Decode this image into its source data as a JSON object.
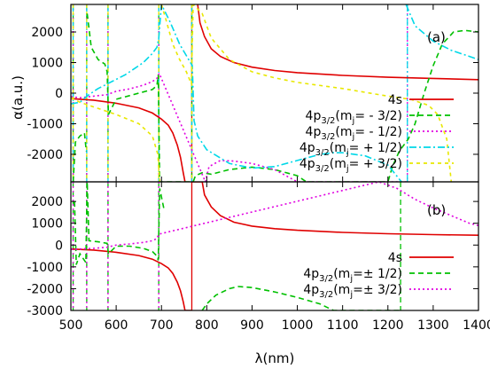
{
  "chart_data": [
    {
      "panel": "(a)",
      "type": "line",
      "xlim": [
        500,
        1400
      ],
      "ylim": [
        -2900,
        2900
      ],
      "yticks": [
        -2000,
        -1000,
        0,
        1000,
        2000
      ],
      "ylabel": "α(a.u.)",
      "legend_position": "lower-right",
      "resonances_nm": {
        "4s": [
          767
        ],
        "4p32_m-3/2": [
          505,
          535,
          582,
          694,
          767
        ],
        "4p32_m-1/2": [
          505,
          535,
          582,
          694,
          1243
        ],
        "4p32_m+1/2": [
          505,
          535,
          582,
          694,
          767,
          1243
        ],
        "4p32_m+3/2": [
          505,
          535,
          582,
          694,
          767
        ]
      },
      "series": [
        {
          "key": "4s",
          "label_main": "4s",
          "label_sub": "",
          "label_tail": "",
          "color": "#e00000",
          "dash": "",
          "points": [
            [
              500,
              -180
            ],
            [
              550,
              -230
            ],
            [
              600,
              -330
            ],
            [
              650,
              -480
            ],
            [
              680,
              -650
            ],
            [
              700,
              -850
            ],
            [
              715,
              -1050
            ],
            [
              725,
              -1300
            ],
            [
              735,
              -1700
            ],
            [
              742,
              -2100
            ],
            [
              748,
              -2600
            ],
            [
              752,
              -2900
            ],
            [
              780,
              2900
            ],
            [
              785,
              2300
            ],
            [
              795,
              1850
            ],
            [
              810,
              1450
            ],
            [
              830,
              1200
            ],
            [
              860,
              1000
            ],
            [
              900,
              850
            ],
            [
              950,
              740
            ],
            [
              1000,
              670
            ],
            [
              1100,
              580
            ],
            [
              1200,
              520
            ],
            [
              1300,
              480
            ],
            [
              1400,
              440
            ]
          ]
        },
        {
          "key": "4p32_m-3/2",
          "label_main": "4p",
          "label_sub": "3/2",
          "label_tail": "(m",
          "label_sub2": "j",
          "label_end": "= - 3/2)",
          "color": "#00c000",
          "dash": "6,4",
          "points": [
            [
              505,
              -2900
            ],
            [
              510,
              -1600
            ],
            [
              520,
              -1400
            ],
            [
              530,
              -1300
            ],
            [
              534,
              -1900
            ],
            [
              536,
              2600
            ],
            [
              545,
              1500
            ],
            [
              560,
              1100
            ],
            [
              575,
              950
            ],
            [
              580,
              700
            ],
            [
              583,
              -700
            ],
            [
              600,
              -200
            ],
            [
              650,
              0
            ],
            [
              680,
              120
            ],
            [
              690,
              250
            ],
            [
              693,
              600
            ],
            [
              696,
              -2900
            ],
            [
              770,
              -2900
            ],
            [
              775,
              -2700
            ],
            [
              790,
              -2600
            ],
            [
              810,
              -2650
            ],
            [
              850,
              -2500
            ],
            [
              900,
              -2420
            ],
            [
              950,
              -2500
            ],
            [
              1000,
              -2700
            ],
            [
              1020,
              -2900
            ],
            [
              1200,
              -2900
            ],
            [
              1210,
              -2400
            ],
            [
              1225,
              -1900
            ],
            [
              1245,
              -1500
            ],
            [
              1260,
              -1000
            ],
            [
              1280,
              0
            ],
            [
              1300,
              900
            ],
            [
              1320,
              1600
            ],
            [
              1345,
              2000
            ],
            [
              1370,
              2050
            ],
            [
              1400,
              2000
            ]
          ]
        },
        {
          "key": "4p32_m-1/2",
          "label_main": "4p",
          "label_sub": "3/2",
          "label_tail": "(m",
          "label_sub2": "j",
          "label_end": "= - 1/2)",
          "color": "#e000e0",
          "dash": "2,3",
          "points": [
            [
              500,
              -120
            ],
            [
              520,
              -150
            ],
            [
              550,
              -100
            ],
            [
              580,
              -50
            ],
            [
              600,
              60
            ],
            [
              630,
              140
            ],
            [
              660,
              260
            ],
            [
              680,
              380
            ],
            [
              690,
              480
            ],
            [
              695,
              650
            ],
            [
              797,
              -2900
            ],
            [
              805,
              -2400
            ],
            [
              830,
              -2200
            ],
            [
              860,
              -2220
            ],
            [
              900,
              -2300
            ],
            [
              950,
              -2500
            ],
            [
              1000,
              -2900
            ],
            [
              1244,
              -2900
            ],
            [
              1244,
              2900
            ]
          ]
        },
        {
          "key": "4p32_m+1/2",
          "label_main": "4p",
          "label_sub": "3/2",
          "label_tail": "(m",
          "label_sub2": "j",
          "label_end": "= + 1/2)",
          "color": "#00d8e8",
          "dash": "8,3,2,3",
          "points": [
            [
              500,
              -350
            ],
            [
              520,
              -300
            ],
            [
              540,
              -50
            ],
            [
              560,
              150
            ],
            [
              580,
              300
            ],
            [
              600,
              450
            ],
            [
              620,
              600
            ],
            [
              640,
              800
            ],
            [
              660,
              1000
            ],
            [
              680,
              1300
            ],
            [
              690,
              1500
            ],
            [
              694,
              1800
            ],
            [
              700,
              2900
            ],
            [
              720,
              2300
            ],
            [
              740,
              1600
            ],
            [
              760,
              1100
            ],
            [
              768,
              900
            ],
            [
              772,
              -900
            ],
            [
              780,
              -1400
            ],
            [
              800,
              -1850
            ],
            [
              850,
              -2300
            ],
            [
              900,
              -2450
            ],
            [
              950,
              -2400
            ],
            [
              1000,
              -2200
            ],
            [
              1050,
              -2000
            ],
            [
              1080,
              -1950
            ],
            [
              1100,
              -1950
            ],
            [
              1150,
              -2050
            ],
            [
              1200,
              -2350
            ],
            [
              1230,
              -2900
            ],
            [
              1240,
              2900
            ],
            [
              1260,
              2200
            ],
            [
              1300,
              1700
            ],
            [
              1340,
              1400
            ],
            [
              1370,
              1250
            ],
            [
              1400,
              1100
            ]
          ]
        },
        {
          "key": "4p32_m+3/2",
          "label_main": "4p",
          "label_sub": "3/2",
          "label_tail": "(m",
          "label_sub2": "j",
          "label_end": "= + 3/2)",
          "color": "#e8e800",
          "dash": "4,4",
          "points": [
            [
              500,
              -150
            ],
            [
              520,
              -300
            ],
            [
              550,
              -450
            ],
            [
              600,
              -700
            ],
            [
              650,
              -1000
            ],
            [
              680,
              -1400
            ],
            [
              692,
              -2000
            ],
            [
              696,
              -2900
            ],
            [
              700,
              2900
            ],
            [
              710,
              2400
            ],
            [
              725,
              1600
            ],
            [
              740,
              1100
            ],
            [
              755,
              700
            ],
            [
              766,
              300
            ],
            [
              770,
              2900
            ],
            [
              790,
              2600
            ],
            [
              810,
              1800
            ],
            [
              850,
              1100
            ],
            [
              900,
              700
            ],
            [
              950,
              500
            ],
            [
              1000,
              350
            ],
            [
              1100,
              150
            ],
            [
              1200,
              -100
            ],
            [
              1250,
              -200
            ],
            [
              1290,
              -400
            ],
            [
              1310,
              -700
            ],
            [
              1330,
              -1500
            ],
            [
              1340,
              -2900
            ]
          ]
        }
      ]
    },
    {
      "panel": "(b)",
      "type": "line",
      "xlim": [
        500,
        1400
      ],
      "ylim": [
        -3000,
        2900
      ],
      "xticks": [
        500,
        600,
        700,
        800,
        900,
        1000,
        1100,
        1200,
        1300,
        1400
      ],
      "yticks": [
        -3000,
        -2000,
        -1000,
        0,
        1000,
        2000
      ],
      "xlabel": "λ(nm)",
      "ylabel": "",
      "legend_position": "lower-right",
      "resonances_nm": {
        "4s": [
          767
        ],
        "4p32_mpm1/2": [
          505,
          535,
          582,
          694,
          1228
        ],
        "4p32_mpm3/2": [
          505,
          535,
          582,
          694
        ]
      },
      "series": [
        {
          "key": "4s",
          "label_main": "4s",
          "label_sub": "",
          "label_tail": "",
          "color": "#e00000",
          "dash": "",
          "points": [
            [
              500,
              -180
            ],
            [
              550,
              -230
            ],
            [
              600,
              -330
            ],
            [
              650,
              -480
            ],
            [
              680,
              -650
            ],
            [
              700,
              -850
            ],
            [
              715,
              -1050
            ],
            [
              725,
              -1300
            ],
            [
              735,
              -1700
            ],
            [
              742,
              -2100
            ],
            [
              748,
              -2600
            ],
            [
              752,
              -3000
            ],
            [
              767,
              -3000
            ],
            [
              767,
              2900
            ],
            [
              790,
              2900
            ],
            [
              795,
              2300
            ],
            [
              810,
              1750
            ],
            [
              830,
              1350
            ],
            [
              860,
              1050
            ],
            [
              900,
              870
            ],
            [
              950,
              750
            ],
            [
              1000,
              680
            ],
            [
              1100,
              580
            ],
            [
              1200,
              520
            ],
            [
              1300,
              480
            ],
            [
              1400,
              450
            ]
          ]
        },
        {
          "key": "4p32_mpm1/2",
          "label_main": "4p",
          "label_sub": "3/2",
          "label_tail": "(m",
          "label_sub2": "j",
          "label_end": "=± 1/2)",
          "color": "#00c000",
          "dash": "6,4",
          "points": [
            [
              505,
              -3000
            ],
            [
              508,
              2000
            ],
            [
              512,
              -900
            ],
            [
              520,
              -400
            ],
            [
              533,
              -800
            ],
            [
              536,
              2900
            ],
            [
              540,
              200
            ],
            [
              560,
              150
            ],
            [
              580,
              80
            ],
            [
              583,
              -400
            ],
            [
              600,
              -50
            ],
            [
              630,
              -50
            ],
            [
              660,
              -150
            ],
            [
              680,
              -300
            ],
            [
              690,
              -500
            ],
            [
              693,
              -700
            ],
            [
              696,
              2600
            ],
            [
              705,
              1700
            ],
            [
              790,
              -3000
            ],
            [
              800,
              -2700
            ],
            [
              820,
              -2300
            ],
            [
              850,
              -2000
            ],
            [
              870,
              -1900
            ],
            [
              900,
              -1950
            ],
            [
              950,
              -2150
            ],
            [
              1000,
              -2400
            ],
            [
              1050,
              -2700
            ],
            [
              1080,
              -3000
            ],
            [
              1228,
              -3000
            ],
            [
              1228,
              2900
            ]
          ]
        },
        {
          "key": "4p32_mpm3/2",
          "label_main": "4p",
          "label_sub": "3/2",
          "label_tail": "(m",
          "label_sub2": "j",
          "label_end": "=± 3/2)",
          "color": "#e000e0",
          "dash": "2,3",
          "points": [
            [
              500,
              -200
            ],
            [
              520,
              -180
            ],
            [
              550,
              -150
            ],
            [
              580,
              -100
            ],
            [
              600,
              0
            ],
            [
              630,
              50
            ],
            [
              660,
              120
            ],
            [
              680,
              200
            ],
            [
              690,
              300
            ],
            [
              694,
              500
            ],
            [
              1180,
              2900
            ],
            [
              1220,
              2600
            ],
            [
              1260,
              2100
            ],
            [
              1300,
              1700
            ],
            [
              1340,
              1350
            ],
            [
              1380,
              1000
            ],
            [
              1400,
              900
            ]
          ]
        }
      ]
    }
  ],
  "resonance_strip_colors": [
    "#00c000",
    "#e000e0",
    "#00d8e8",
    "#e8e800"
  ]
}
